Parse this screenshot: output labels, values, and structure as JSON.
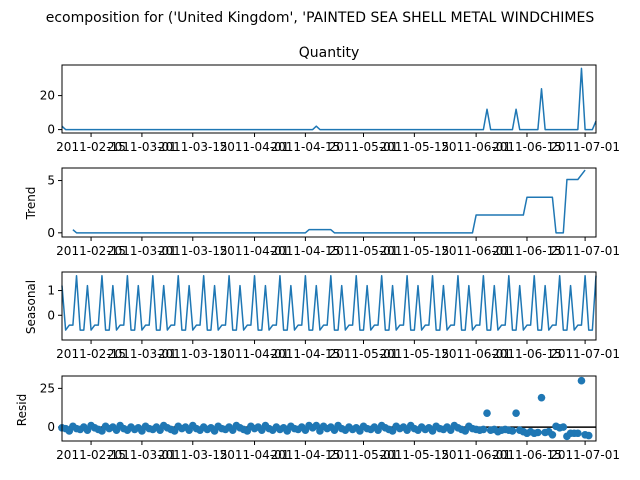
{
  "suptitle": "ecomposition for ('United Kingdom', 'PAINTED SEA SHELL METAL WINDCHIMES",
  "colors": {
    "line": "#1f77b4",
    "marker": "#1f77b4",
    "zero_line": "#000000",
    "axes": "#000000"
  },
  "chart_data": [
    {
      "type": "line",
      "panel": "observed",
      "title": "Quantity",
      "ylabel": "",
      "ylim": [
        -2,
        38
      ],
      "yticks": [
        "0",
        "20"
      ],
      "ytick_values": [
        0,
        20
      ],
      "xlim": [
        "2011-02-07",
        "2011-07-04"
      ],
      "xticks": [
        "2011-02-15",
        "2011-03-01",
        "2011-03-15",
        "2011-04-01",
        "2011-04-15",
        "2011-05-01",
        "2011-05-15",
        "2011-06-01",
        "2011-06-15",
        "2011-07-01"
      ],
      "series": [
        {
          "points": [
            [
              "2011-02-07",
              2
            ],
            [
              "2011-02-08",
              0
            ],
            [
              "2011-04-17",
              0
            ],
            [
              "2011-04-18",
              2
            ],
            [
              "2011-04-19",
              0
            ],
            [
              "2011-06-03",
              0
            ],
            [
              "2011-06-04",
              12
            ],
            [
              "2011-06-05",
              0
            ],
            [
              "2011-06-11",
              0
            ],
            [
              "2011-06-12",
              12
            ],
            [
              "2011-06-13",
              0
            ],
            [
              "2011-06-18",
              0
            ],
            [
              "2011-06-19",
              24
            ],
            [
              "2011-06-20",
              0
            ],
            [
              "2011-06-29",
              0
            ],
            [
              "2011-06-30",
              36
            ],
            [
              "2011-07-01",
              0
            ],
            [
              "2011-07-03",
              0
            ],
            [
              "2011-07-04",
              5
            ]
          ]
        }
      ]
    },
    {
      "type": "line",
      "panel": "trend",
      "title": "",
      "ylabel": "Trend",
      "ylim": [
        -0.4,
        6.2
      ],
      "yticks": [
        "0",
        "5"
      ],
      "ytick_values": [
        0,
        5
      ],
      "xlim": [
        "2011-02-07",
        "2011-07-04"
      ],
      "xticks": [
        "2011-02-15",
        "2011-03-01",
        "2011-03-15",
        "2011-04-01",
        "2011-04-15",
        "2011-05-01",
        "2011-05-15",
        "2011-06-01",
        "2011-06-15",
        "2011-07-01"
      ],
      "series": [
        {
          "points": [
            [
              "2011-02-10",
              0.3
            ],
            [
              "2011-02-11",
              0
            ],
            [
              "2011-04-15",
              0
            ],
            [
              "2011-04-16",
              0.3
            ],
            [
              "2011-04-22",
              0.3
            ],
            [
              "2011-04-23",
              0
            ],
            [
              "2011-05-31",
              0
            ],
            [
              "2011-06-01",
              1.7
            ],
            [
              "2011-06-14",
              1.7
            ],
            [
              "2011-06-15",
              3.4
            ],
            [
              "2011-06-22",
              3.4
            ],
            [
              "2011-06-23",
              0
            ],
            [
              "2011-06-25",
              0
            ],
            [
              "2011-06-26",
              5.1
            ],
            [
              "2011-06-29",
              5.1
            ],
            [
              "2011-07-01",
              6.0
            ]
          ]
        }
      ]
    },
    {
      "type": "line",
      "panel": "seasonal",
      "title": "",
      "ylabel": "Seasonal",
      "ylim": [
        -1.0,
        1.75
      ],
      "yticks": [
        "0",
        "1"
      ],
      "ytick_values": [
        0,
        1
      ],
      "xlim": [
        "2011-02-07",
        "2011-07-04"
      ],
      "xticks": [
        "2011-02-15",
        "2011-03-01",
        "2011-03-15",
        "2011-04-01",
        "2011-04-15",
        "2011-05-01",
        "2011-05-15",
        "2011-06-01",
        "2011-06-15",
        "2011-07-01"
      ],
      "period_days": 7,
      "start": "2011-02-07",
      "cycle": [
        1.2,
        -0.6,
        -0.4,
        -0.4,
        1.6,
        -0.6,
        -0.6
      ],
      "series": [
        {
          "end": "2011-07-04",
          "end_value": 1.6
        }
      ]
    },
    {
      "type": "scatter",
      "panel": "resid",
      "title": "",
      "ylabel": "Resid",
      "ylim": [
        -9,
        33
      ],
      "yticks": [
        "0",
        "25"
      ],
      "ytick_values": [
        0,
        25
      ],
      "zero_line": 0,
      "xlim": [
        "2011-02-07",
        "2011-07-04"
      ],
      "xticks": [
        "2011-02-15",
        "2011-03-01",
        "2011-03-15",
        "2011-04-01",
        "2011-04-15",
        "2011-05-01",
        "2011-05-15",
        "2011-06-01",
        "2011-06-15",
        "2011-07-01"
      ],
      "series": [
        {
          "points": [
            [
              "2011-02-07",
              -0.5
            ],
            [
              "2011-02-08",
              -1
            ],
            [
              "2011-02-09",
              -2.5
            ],
            [
              "2011-02-10",
              0.5
            ],
            [
              "2011-02-11",
              -1
            ],
            [
              "2011-02-12",
              -1.5
            ],
            [
              "2011-02-13",
              0
            ],
            [
              "2011-02-14",
              -2
            ],
            [
              "2011-02-15",
              1
            ],
            [
              "2011-02-16",
              -0.5
            ],
            [
              "2011-02-17",
              -1.5
            ],
            [
              "2011-02-18",
              -2.5
            ],
            [
              "2011-02-19",
              0.5
            ],
            [
              "2011-02-20",
              -1
            ],
            [
              "2011-02-21",
              0
            ],
            [
              "2011-02-22",
              -2
            ],
            [
              "2011-02-23",
              1
            ],
            [
              "2011-02-24",
              -1
            ],
            [
              "2011-02-25",
              -2
            ],
            [
              "2011-02-26",
              0
            ],
            [
              "2011-02-27",
              -1.5
            ],
            [
              "2011-02-28",
              -0.5
            ],
            [
              "2011-03-01",
              -2.5
            ],
            [
              "2011-03-02",
              0.5
            ],
            [
              "2011-03-03",
              -1
            ],
            [
              "2011-03-04",
              -1.5
            ],
            [
              "2011-03-05",
              0
            ],
            [
              "2011-03-06",
              -2
            ],
            [
              "2011-03-07",
              1
            ],
            [
              "2011-03-08",
              -0.5
            ],
            [
              "2011-03-09",
              -1.5
            ],
            [
              "2011-03-10",
              -2.5
            ],
            [
              "2011-03-11",
              0.5
            ],
            [
              "2011-03-12",
              -1
            ],
            [
              "2011-03-13",
              0
            ],
            [
              "2011-03-14",
              -2
            ],
            [
              "2011-03-15",
              1
            ],
            [
              "2011-03-16",
              -1
            ],
            [
              "2011-03-17",
              -2
            ],
            [
              "2011-03-18",
              0
            ],
            [
              "2011-03-19",
              -1.5
            ],
            [
              "2011-03-20",
              -0.5
            ],
            [
              "2011-03-21",
              -2.5
            ],
            [
              "2011-03-22",
              0.5
            ],
            [
              "2011-03-23",
              -1
            ],
            [
              "2011-03-24",
              -1.5
            ],
            [
              "2011-03-25",
              0
            ],
            [
              "2011-03-26",
              -2
            ],
            [
              "2011-03-27",
              1
            ],
            [
              "2011-03-28",
              -0.5
            ],
            [
              "2011-03-29",
              -1.5
            ],
            [
              "2011-03-30",
              -2.5
            ],
            [
              "2011-03-31",
              0.5
            ],
            [
              "2011-04-01",
              -1
            ],
            [
              "2011-04-02",
              0
            ],
            [
              "2011-04-03",
              -2
            ],
            [
              "2011-04-04",
              1
            ],
            [
              "2011-04-05",
              -1
            ],
            [
              "2011-04-06",
              -2
            ],
            [
              "2011-04-07",
              0
            ],
            [
              "2011-04-08",
              -1.5
            ],
            [
              "2011-04-09",
              -0.5
            ],
            [
              "2011-04-10",
              -2.5
            ],
            [
              "2011-04-11",
              0.5
            ],
            [
              "2011-04-12",
              -1
            ],
            [
              "2011-04-13",
              -1.5
            ],
            [
              "2011-04-14",
              0
            ],
            [
              "2011-04-15",
              -2
            ],
            [
              "2011-04-16",
              1
            ],
            [
              "2011-04-17",
              -0.5
            ],
            [
              "2011-04-18",
              1
            ],
            [
              "2011-04-19",
              -2.5
            ],
            [
              "2011-04-20",
              0.5
            ],
            [
              "2011-04-21",
              -1
            ],
            [
              "2011-04-22",
              0
            ],
            [
              "2011-04-23",
              -2
            ],
            [
              "2011-04-24",
              1
            ],
            [
              "2011-04-25",
              -1
            ],
            [
              "2011-04-26",
              -2
            ],
            [
              "2011-04-27",
              0
            ],
            [
              "2011-04-28",
              -1.5
            ],
            [
              "2011-04-29",
              -0.5
            ],
            [
              "2011-04-30",
              -2.5
            ],
            [
              "2011-05-01",
              0.5
            ],
            [
              "2011-05-02",
              -1
            ],
            [
              "2011-05-03",
              -1.5
            ],
            [
              "2011-05-04",
              0
            ],
            [
              "2011-05-05",
              -2
            ],
            [
              "2011-05-06",
              1
            ],
            [
              "2011-05-07",
              -0.5
            ],
            [
              "2011-05-08",
              -1.5
            ],
            [
              "2011-05-09",
              -2.5
            ],
            [
              "2011-05-10",
              0.5
            ],
            [
              "2011-05-11",
              -1
            ],
            [
              "2011-05-12",
              0
            ],
            [
              "2011-05-13",
              -2
            ],
            [
              "2011-05-14",
              1
            ],
            [
              "2011-05-15",
              -1
            ],
            [
              "2011-05-16",
              -2
            ],
            [
              "2011-05-17",
              0
            ],
            [
              "2011-05-18",
              -1.5
            ],
            [
              "2011-05-19",
              -0.5
            ],
            [
              "2011-05-20",
              -2.5
            ],
            [
              "2011-05-21",
              0.5
            ],
            [
              "2011-05-22",
              -1
            ],
            [
              "2011-05-23",
              -1.5
            ],
            [
              "2011-05-24",
              0
            ],
            [
              "2011-05-25",
              -2
            ],
            [
              "2011-05-26",
              1
            ],
            [
              "2011-05-27",
              -0.5
            ],
            [
              "2011-05-28",
              -1.5
            ],
            [
              "2011-05-29",
              -2.5
            ],
            [
              "2011-05-30",
              0.5
            ],
            [
              "2011-05-31",
              -1
            ],
            [
              "2011-06-01",
              -1.5
            ],
            [
              "2011-06-02",
              -2
            ],
            [
              "2011-06-03",
              -1.5
            ],
            [
              "2011-06-04",
              9
            ],
            [
              "2011-06-05",
              -2
            ],
            [
              "2011-06-06",
              -1.5
            ],
            [
              "2011-06-07",
              -3
            ],
            [
              "2011-06-08",
              -2
            ],
            [
              "2011-06-09",
              -1.5
            ],
            [
              "2011-06-10",
              -2
            ],
            [
              "2011-06-11",
              -2.5
            ],
            [
              "2011-06-12",
              9
            ],
            [
              "2011-06-13",
              -2
            ],
            [
              "2011-06-14",
              -3
            ],
            [
              "2011-06-15",
              -4
            ],
            [
              "2011-06-16",
              -3
            ],
            [
              "2011-06-17",
              -4
            ],
            [
              "2011-06-18",
              -3.5
            ],
            [
              "2011-06-19",
              19
            ],
            [
              "2011-06-20",
              -3.5
            ],
            [
              "2011-06-21",
              -3
            ],
            [
              "2011-06-22",
              -5
            ],
            [
              "2011-06-23",
              0.5
            ],
            [
              "2011-06-24",
              -0.5
            ],
            [
              "2011-06-25",
              0
            ],
            [
              "2011-06-26",
              -6
            ],
            [
              "2011-06-27",
              -4
            ],
            [
              "2011-06-28",
              -4
            ],
            [
              "2011-06-29",
              -4
            ],
            [
              "2011-06-30",
              30
            ],
            [
              "2011-07-01",
              -5
            ],
            [
              "2011-07-02",
              -5.5
            ]
          ]
        }
      ]
    }
  ]
}
